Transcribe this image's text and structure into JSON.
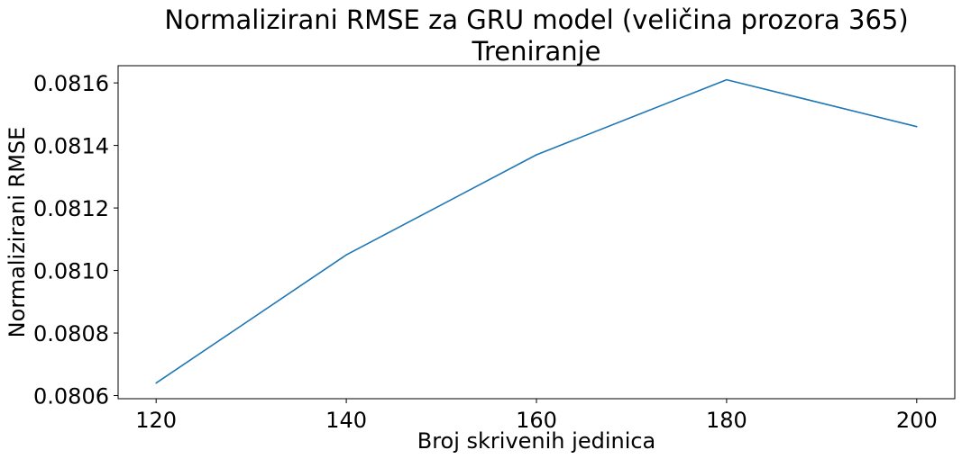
{
  "chart_data": {
    "type": "line",
    "title": "Normalizirani RMSE za GRU model (veličina prozora 365)",
    "subtitle": "Treniranje",
    "xlabel": "Broj skrivenih jedinica",
    "ylabel": "Normalizirani RMSE",
    "x": [
      120,
      140,
      160,
      180,
      200
    ],
    "series": [
      {
        "values": [
          0.08064,
          0.08105,
          0.08137,
          0.08161,
          0.08146
        ]
      }
    ],
    "xlim": [
      116,
      204
    ],
    "ylim": [
      0.08059,
      0.081655
    ],
    "xticks": [
      120,
      140,
      160,
      180,
      200
    ],
    "xtick_labels": [
      "120",
      "140",
      "160",
      "180",
      "200"
    ],
    "yticks": [
      0.0806,
      0.0808,
      0.081,
      0.0812,
      0.0814,
      0.0816
    ],
    "ytick_labels": [
      "0.0806",
      "0.0808",
      "0.0810",
      "0.0812",
      "0.0814",
      "0.0816"
    ],
    "grid": false,
    "line_color": "#1f77b4"
  }
}
